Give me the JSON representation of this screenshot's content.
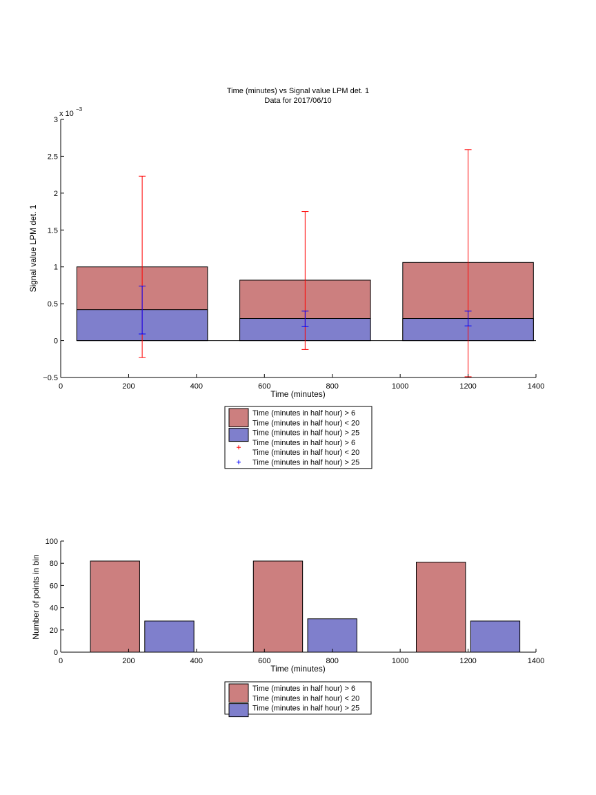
{
  "chart_data": [
    {
      "type": "bar",
      "title": "Time (minutes) vs Signal value LPM det. 1",
      "subtitle": "Data for 2017/06/10",
      "xlabel": "Time (minutes)",
      "ylabel": "Signal value LPM det. 1",
      "y_exponent_label": "x 10",
      "y_exponent_power": "−3",
      "xlim": [
        0,
        1400
      ],
      "ylim": [
        -0.5,
        3
      ],
      "x_ticks": [
        "0",
        "200",
        "400",
        "600",
        "800",
        "1000",
        "1200",
        "1400"
      ],
      "y_ticks": [
        "−0.5",
        "0",
        "0.5",
        "1",
        "1.5",
        "2",
        "2.5",
        "3"
      ],
      "grid": false,
      "legend_position": "below",
      "bar_width": 385,
      "categories_x": [
        240,
        720,
        1200
      ],
      "series": [
        {
          "name": "Time (minutes in half hour) > 6\nTime (minutes in half hour) < 20",
          "color": "#cc7f7f",
          "values": [
            1.0,
            0.82,
            1.06
          ]
        },
        {
          "name": "Time (minutes in half hour) > 25",
          "color": "#7f7fcc",
          "values": [
            0.42,
            0.3,
            0.3
          ]
        }
      ],
      "error_bars": [
        {
          "name": "Time (minutes in half hour) > 6\nTime (minutes in half hour) < 20",
          "color": "#ff0000",
          "x": [
            240,
            720,
            1200
          ],
          "lower": [
            -0.23,
            -0.12,
            -0.49
          ],
          "upper": [
            2.23,
            1.75,
            2.59
          ]
        },
        {
          "name": "Time (minutes in half hour) > 25",
          "color": "#0000ff",
          "x": [
            240,
            720,
            1200
          ],
          "lower": [
            0.09,
            0.19,
            0.2
          ],
          "upper": [
            0.74,
            0.4,
            0.4
          ]
        }
      ],
      "legend": [
        {
          "kind": "patch",
          "color": "#cc7f7f",
          "lines": [
            "Time (minutes in half hour) > 6",
            "Time (minutes in half hour) < 20"
          ]
        },
        {
          "kind": "patch",
          "color": "#7f7fcc",
          "lines": [
            "Time (minutes in half hour) > 25"
          ]
        },
        {
          "kind": "marker",
          "color": "#ff0000",
          "lines": [
            "Time (minutes in half hour) > 6",
            "Time (minutes in half hour) < 20"
          ]
        },
        {
          "kind": "marker",
          "color": "#0000ff",
          "lines": [
            "Time (minutes in half hour) > 25"
          ]
        }
      ]
    },
    {
      "type": "bar",
      "xlabel": "Time (minutes)",
      "ylabel": "Number of points in bin",
      "xlim": [
        0,
        1400
      ],
      "ylim": [
        0,
        100
      ],
      "x_ticks": [
        "0",
        "200",
        "400",
        "600",
        "800",
        "1000",
        "1200",
        "1400"
      ],
      "y_ticks": [
        "0",
        "20",
        "40",
        "60",
        "80",
        "100"
      ],
      "grid": false,
      "legend_position": "below",
      "bar_width": 145,
      "series": [
        {
          "name": "Time (minutes in half hour) > 6\nTime (minutes in half hour) < 20",
          "color": "#cc7f7f",
          "x": [
            160,
            640,
            1120
          ],
          "values": [
            82,
            82,
            81
          ]
        },
        {
          "name": "Time (minutes in half hour) > 25",
          "color": "#7f7fcc",
          "x": [
            320,
            800,
            1280
          ],
          "values": [
            28,
            30,
            28
          ]
        }
      ],
      "legend": [
        {
          "kind": "patch",
          "color": "#cc7f7f",
          "lines": [
            "Time (minutes in half hour) > 6",
            "Time (minutes in half hour) < 20"
          ]
        },
        {
          "kind": "patch",
          "color": "#7f7fcc",
          "lines": [
            "Time (minutes in half hour) > 25"
          ]
        }
      ]
    }
  ]
}
